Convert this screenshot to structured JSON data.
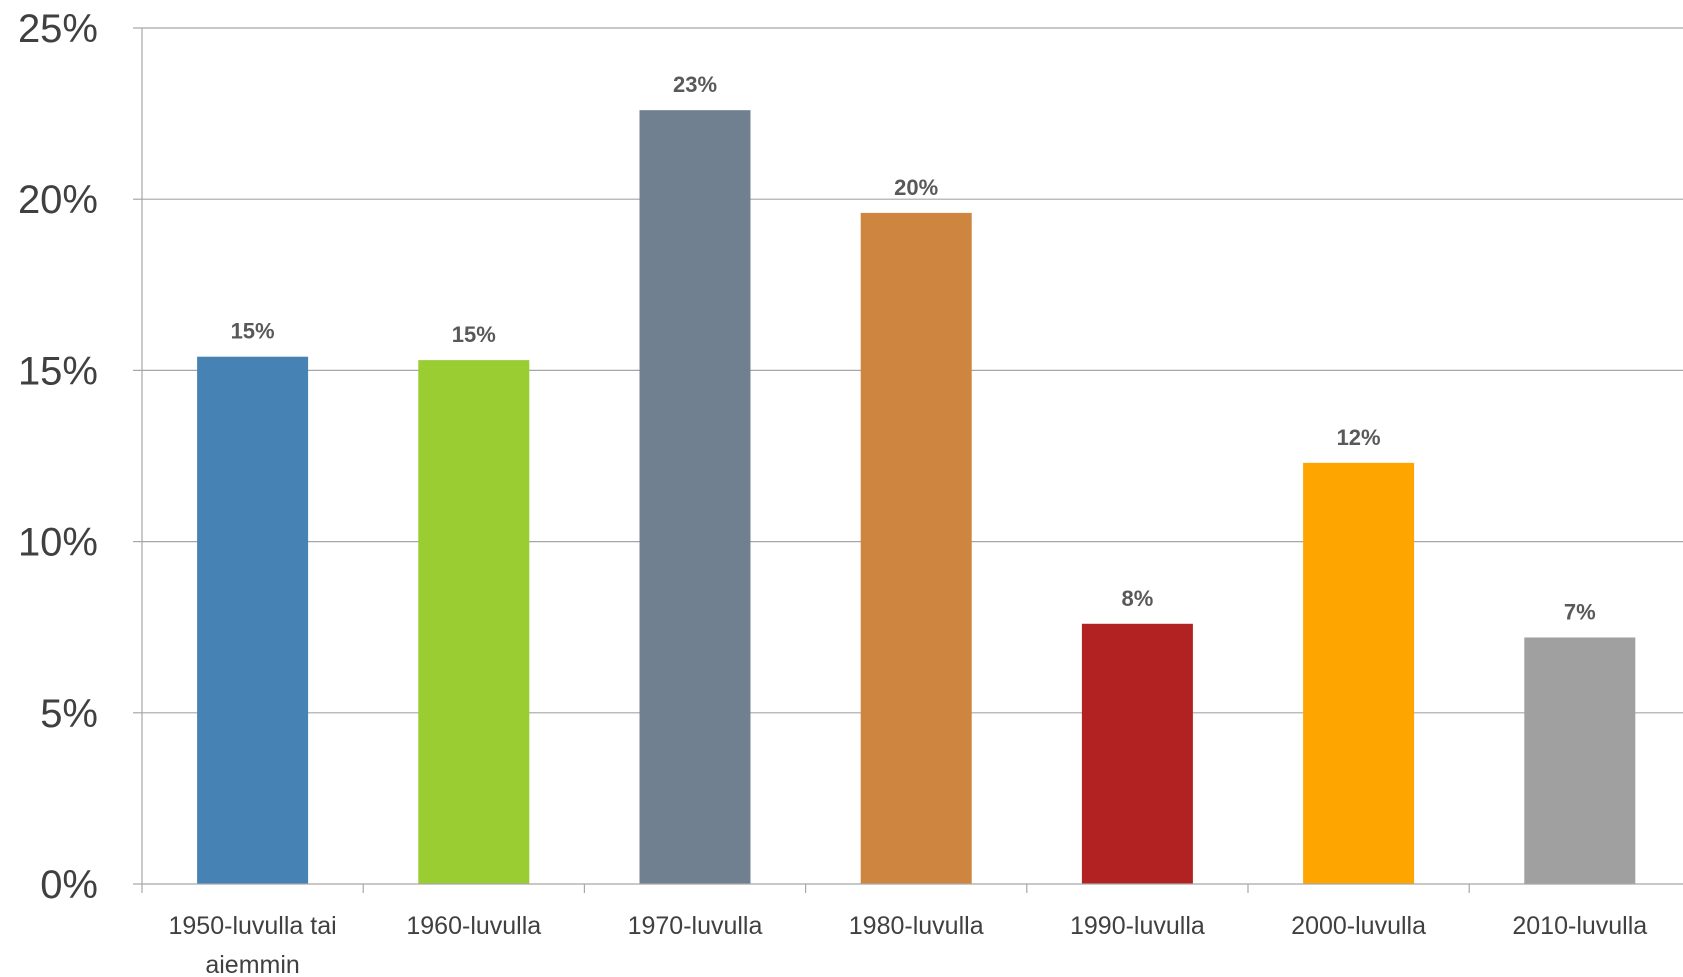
{
  "chart_data": {
    "type": "bar",
    "categories": [
      [
        "1950-luvulla tai",
        "aiemmin"
      ],
      [
        "1960-luvulla"
      ],
      [
        "1970-luvulla"
      ],
      [
        "1980-luvulla"
      ],
      [
        "1990-luvulla"
      ],
      [
        "2000-luvulla"
      ],
      [
        "2010-luvulla"
      ]
    ],
    "values": [
      15.4,
      15.3,
      22.6,
      19.6,
      7.6,
      12.3,
      7.2
    ],
    "data_labels": [
      "15%",
      "15%",
      "23%",
      "20%",
      "8%",
      "12%",
      "7%"
    ],
    "colors": [
      "#4682B4",
      "#9ACD32",
      "#708090",
      "#CD853F",
      "#B22222",
      "#FFA500",
      "#A0A0A0"
    ],
    "ylim": [
      0,
      25
    ],
    "yticks": [
      0,
      5,
      10,
      15,
      20,
      25
    ],
    "ytick_labels": [
      "0%",
      "5%",
      "10%",
      "15%",
      "20%",
      "25%"
    ],
    "grid": true,
    "legend": "none"
  }
}
